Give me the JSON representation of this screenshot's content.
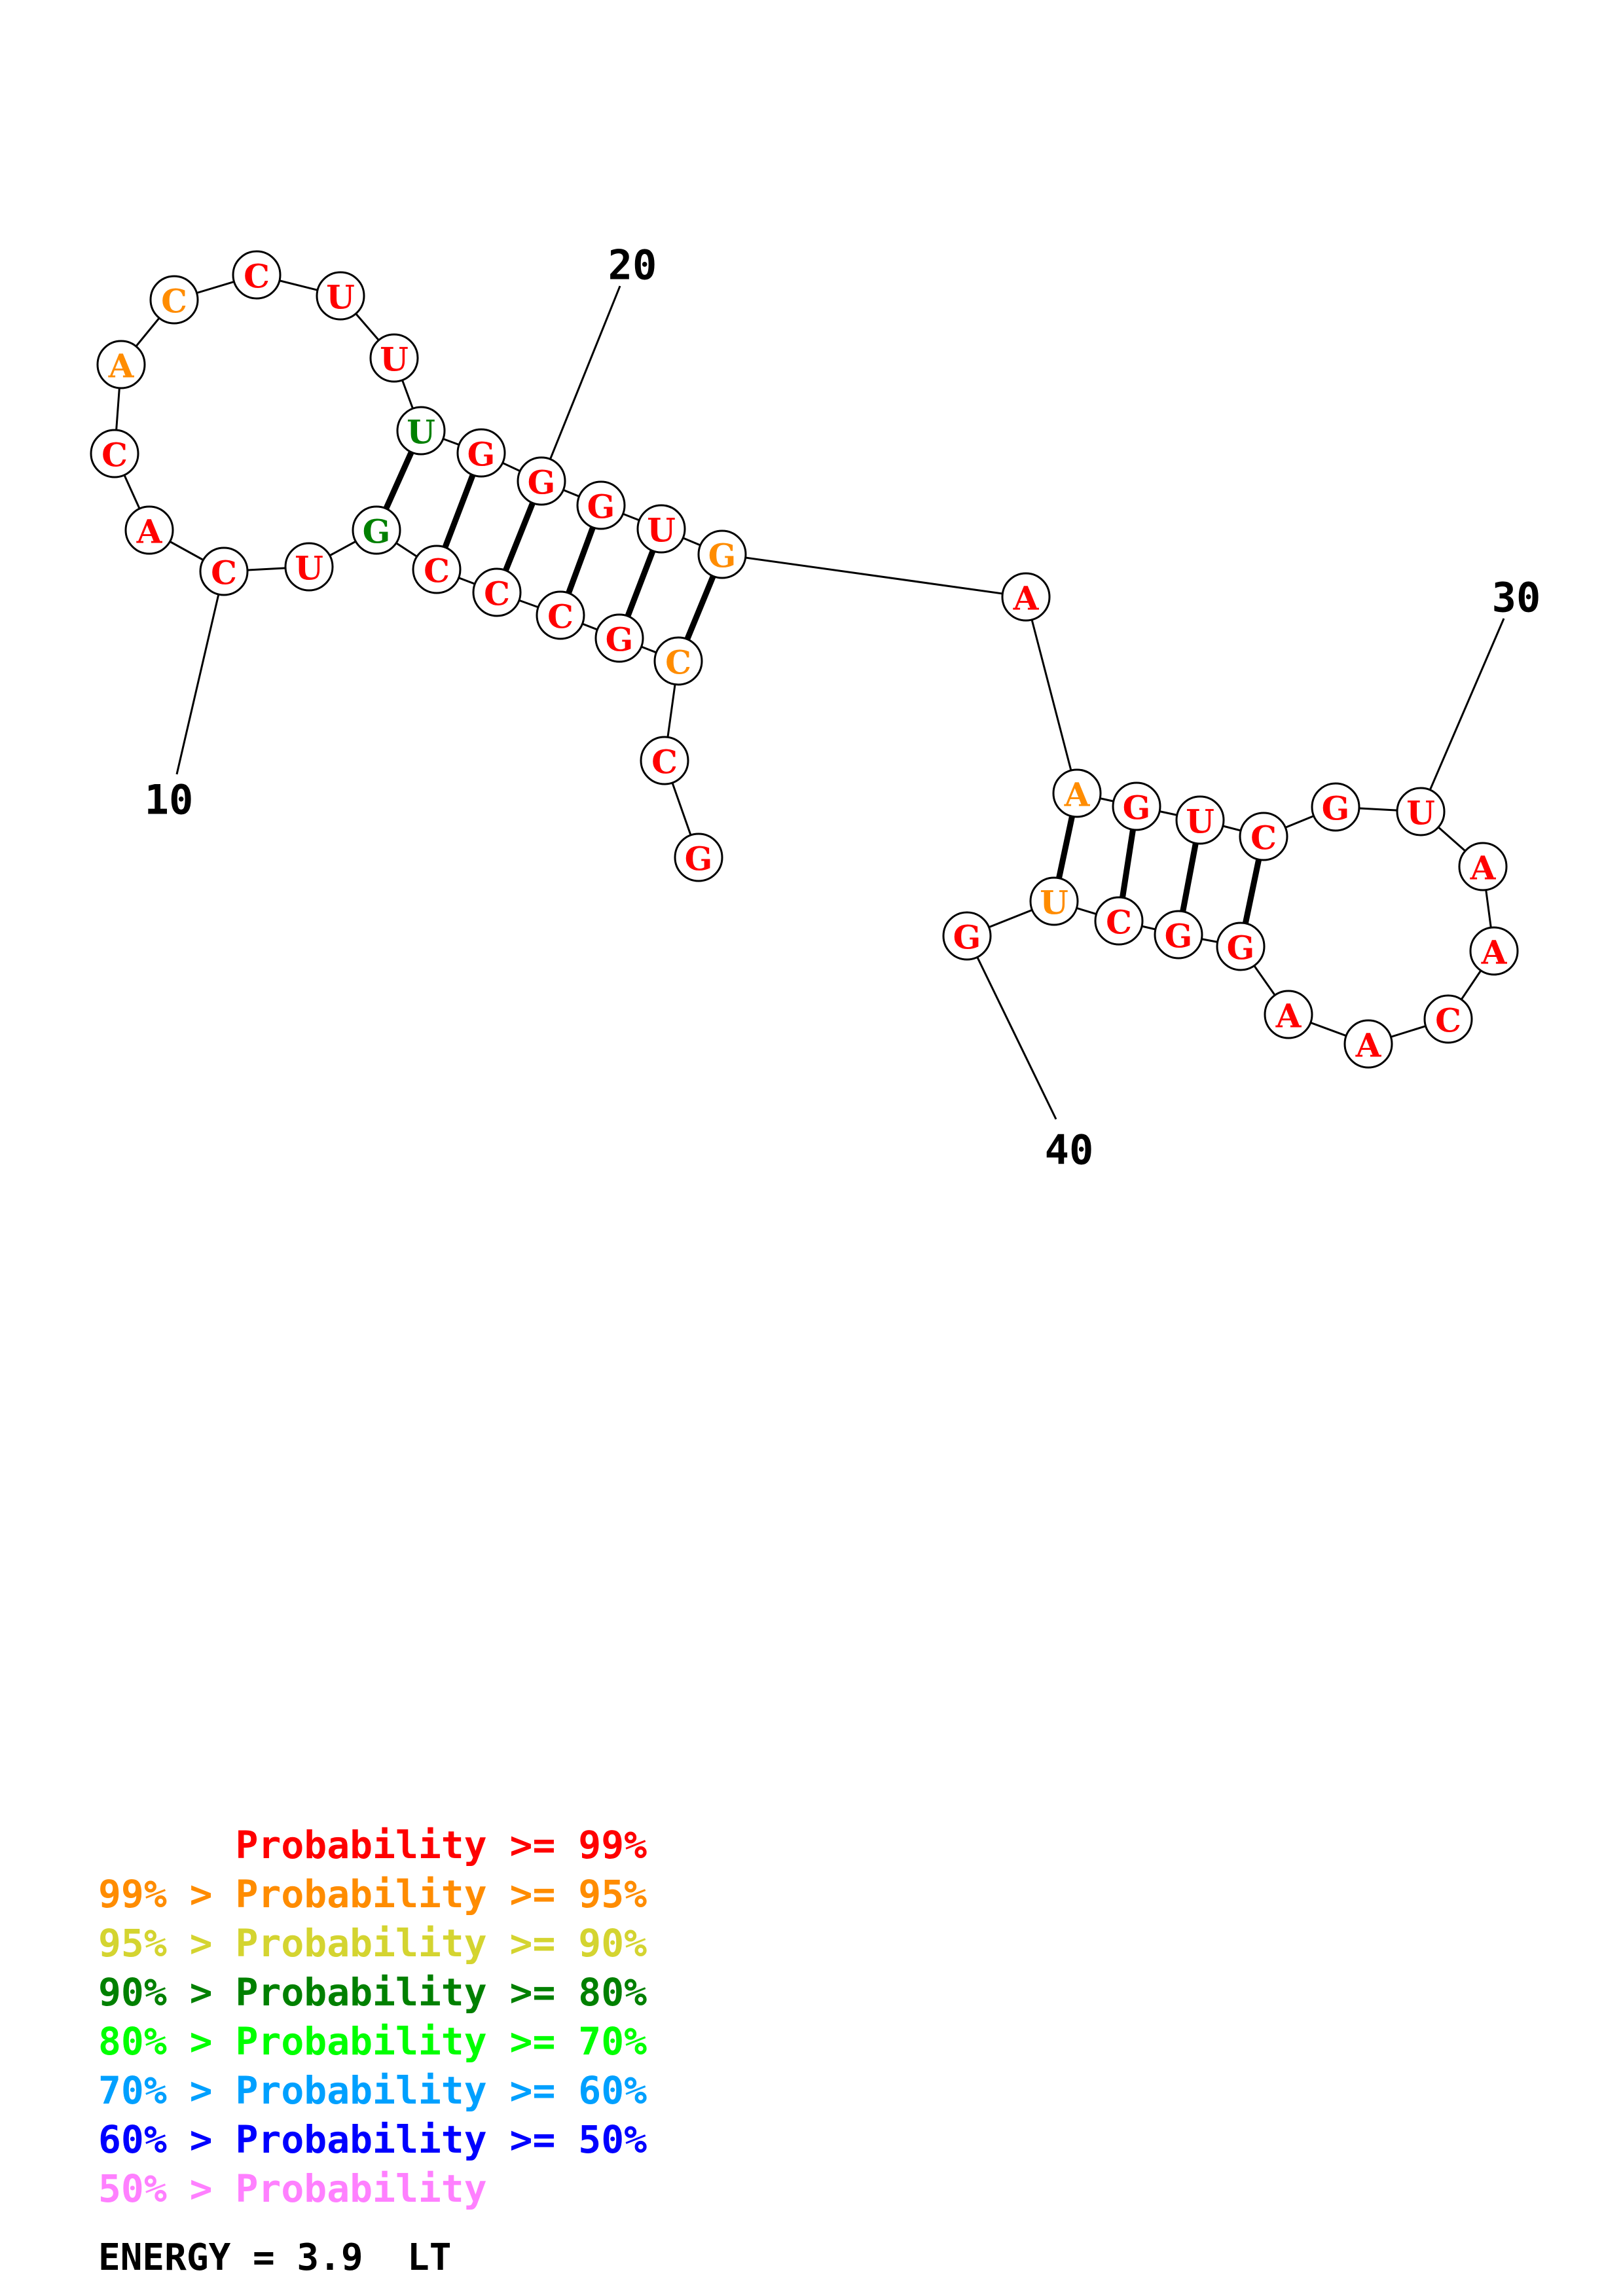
{
  "colors": {
    "p99": "#ff0000",
    "p95": "#ff8c00",
    "p90": "#d4d430",
    "p80": "#008000",
    "p70": "#00ff00",
    "p60": "#00a0ff",
    "p50": "#0000ff",
    "low": "#ff80ff"
  },
  "sequence": [
    {
      "n": 1,
      "base": "G",
      "color": "p99"
    },
    {
      "n": 2,
      "base": "C",
      "color": "p99"
    },
    {
      "n": 3,
      "base": "C",
      "color": "p95"
    },
    {
      "n": 4,
      "base": "G",
      "color": "p99"
    },
    {
      "n": 5,
      "base": "C",
      "color": "p99"
    },
    {
      "n": 6,
      "base": "C",
      "color": "p99"
    },
    {
      "n": 7,
      "base": "C",
      "color": "p99"
    },
    {
      "n": 8,
      "base": "G",
      "color": "p80"
    },
    {
      "n": 9,
      "base": "U",
      "color": "p99"
    },
    {
      "n": 10,
      "base": "C",
      "color": "p99"
    },
    {
      "n": 11,
      "base": "A",
      "color": "p99"
    },
    {
      "n": 12,
      "base": "C",
      "color": "p99"
    },
    {
      "n": 13,
      "base": "A",
      "color": "p95"
    },
    {
      "n": 14,
      "base": "C",
      "color": "p95"
    },
    {
      "n": 15,
      "base": "C",
      "color": "p99"
    },
    {
      "n": 16,
      "base": "U",
      "color": "p99"
    },
    {
      "n": 17,
      "base": "U",
      "color": "p99"
    },
    {
      "n": 18,
      "base": "U",
      "color": "p80"
    },
    {
      "n": 19,
      "base": "G",
      "color": "p99"
    },
    {
      "n": 20,
      "base": "G",
      "color": "p99"
    },
    {
      "n": 21,
      "base": "G",
      "color": "p99"
    },
    {
      "n": 22,
      "base": "U",
      "color": "p99"
    },
    {
      "n": 23,
      "base": "G",
      "color": "p95"
    },
    {
      "n": 24,
      "base": "A",
      "color": "p99"
    },
    {
      "n": 25,
      "base": "A",
      "color": "p95"
    },
    {
      "n": 26,
      "base": "G",
      "color": "p99"
    },
    {
      "n": 27,
      "base": "U",
      "color": "p99"
    },
    {
      "n": 28,
      "base": "C",
      "color": "p99"
    },
    {
      "n": 29,
      "base": "G",
      "color": "p99"
    },
    {
      "n": 30,
      "base": "U",
      "color": "p99"
    },
    {
      "n": 31,
      "base": "A",
      "color": "p99"
    },
    {
      "n": 32,
      "base": "A",
      "color": "p99"
    },
    {
      "n": 33,
      "base": "C",
      "color": "p99"
    },
    {
      "n": 34,
      "base": "A",
      "color": "p99"
    },
    {
      "n": 35,
      "base": "A",
      "color": "p99"
    },
    {
      "n": 36,
      "base": "G",
      "color": "p99"
    },
    {
      "n": 37,
      "base": "G",
      "color": "p99"
    },
    {
      "n": 38,
      "base": "C",
      "color": "p99"
    },
    {
      "n": 39,
      "base": "U",
      "color": "p95"
    },
    {
      "n": 40,
      "base": "G",
      "color": "p99"
    }
  ],
  "pairs": [
    [
      3,
      23
    ],
    [
      4,
      22
    ],
    [
      5,
      21
    ],
    [
      6,
      20
    ],
    [
      7,
      19
    ],
    [
      8,
      18
    ],
    [
      25,
      39
    ],
    [
      26,
      38
    ],
    [
      27,
      37
    ],
    [
      28,
      36
    ]
  ],
  "position_labels": [
    "10",
    "20",
    "30",
    "40"
  ],
  "legend": {
    "lines": [
      {
        "text": "      Probability >= 99%",
        "color": "p99"
      },
      {
        "text": "99% > Probability >= 95%",
        "color": "p95"
      },
      {
        "text": "95% > Probability >= 90%",
        "color": "p90"
      },
      {
        "text": "90% > Probability >= 80%",
        "color": "p80"
      },
      {
        "text": "80% > Probability >= 70%",
        "color": "p70"
      },
      {
        "text": "70% > Probability >= 60%",
        "color": "p60"
      },
      {
        "text": "60% > Probability >= 50%",
        "color": "p50"
      },
      {
        "text": "50% > Probability",
        "color": "low"
      }
    ]
  },
  "energy": "ENERGY = 3.9  LT"
}
